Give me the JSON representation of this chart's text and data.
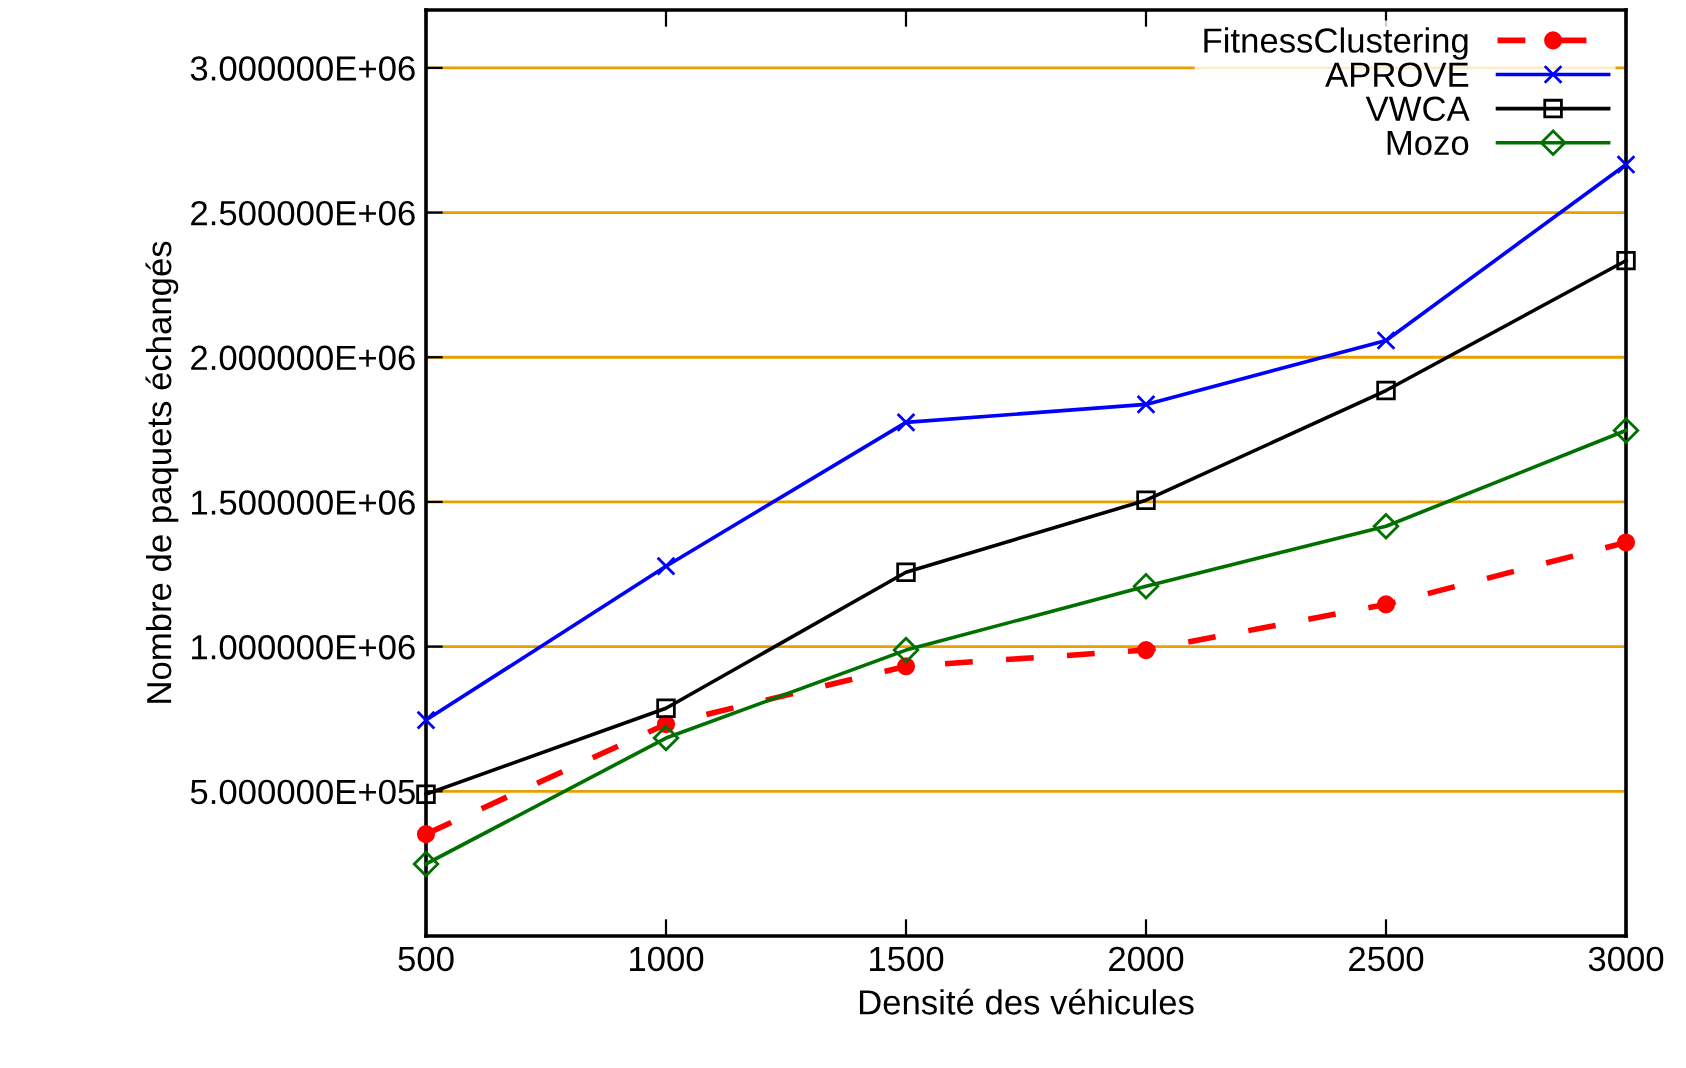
{
  "chart_data": {
    "type": "line",
    "xlabel": "Densité des véhicules",
    "ylabel": "Nombre de paquets échangés",
    "x": [
      500,
      1000,
      1500,
      2000,
      2500,
      3000
    ],
    "xlim": [
      500,
      3000
    ],
    "xticks": [
      500,
      1000,
      1500,
      2000,
      2500,
      3000
    ],
    "ylim": [
      0,
      3200000
    ],
    "yticks": [
      {
        "value": 500000,
        "label": "5.000000E+05"
      },
      {
        "value": 1000000,
        "label": "1.000000E+06"
      },
      {
        "value": 1500000,
        "label": "1.500000E+06"
      },
      {
        "value": 2000000,
        "label": "2.000000E+06"
      },
      {
        "value": 2500000,
        "label": "2.500000E+06"
      },
      {
        "value": 3000000,
        "label": "3.000000E+06"
      }
    ],
    "grid": "y",
    "legend": "top right",
    "series": [
      {
        "name": "FitnessClustering",
        "color": "#ff0000",
        "marker": "circle",
        "line_style": "dashed",
        "values": [
          352000,
          732000,
          932000,
          988000,
          1146000,
          1360000
        ]
      },
      {
        "name": "APROVE",
        "color": "#0000ff",
        "marker": "cross",
        "line_style": "solid",
        "values": [
          746000,
          1278000,
          1775000,
          1837000,
          2058000,
          2666000
        ]
      },
      {
        "name": "VWCA",
        "color": "#000000",
        "marker": "square",
        "line_style": "solid",
        "values": [
          490000,
          787000,
          1257000,
          1506000,
          1885000,
          2334000
        ]
      },
      {
        "name": "Mozo",
        "color": "#007000",
        "marker": "diamond",
        "line_style": "solid",
        "values": [
          249000,
          684000,
          988000,
          1209000,
          1416000,
          1747000
        ]
      }
    ]
  }
}
